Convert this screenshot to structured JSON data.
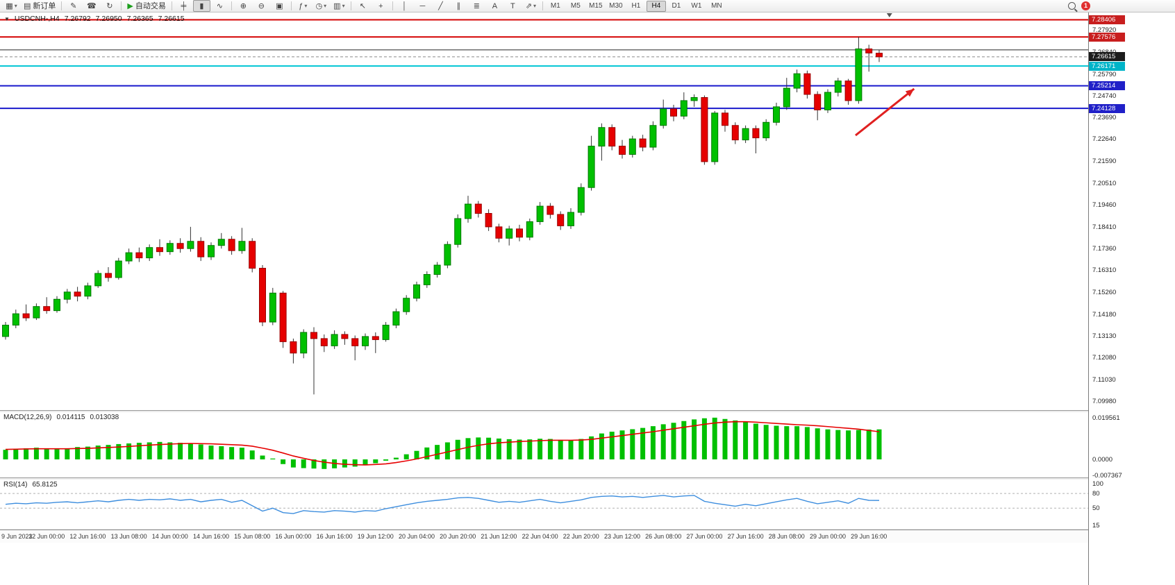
{
  "toolbar": {
    "caret_glyph": "▾",
    "items": [
      {
        "name": "new-chart-button",
        "glyph": "▦",
        "caret": true
      },
      {
        "name": "new-order-button",
        "glyph": "▤",
        "label": "新订单"
      },
      {
        "sep": true
      },
      {
        "name": "quill-icon",
        "glyph": "✎"
      },
      {
        "name": "community-icon",
        "glyph": "☎"
      },
      {
        "name": "refresh-icon",
        "glyph": "↻"
      },
      {
        "sep": true
      },
      {
        "name": "autotrading-button",
        "glyph": "▶",
        "label": "自动交易",
        "glyph_color": "#1d9f1d"
      },
      {
        "sep": true
      },
      {
        "name": "bar-chart-button",
        "glyph": "╪"
      },
      {
        "name": "candlestick-button",
        "glyph": "▮",
        "active": true
      },
      {
        "name": "line-chart-button",
        "glyph": "∿"
      },
      {
        "sep": true
      },
      {
        "name": "zoom-in-button",
        "glyph": "⊕"
      },
      {
        "name": "zoom-out-button",
        "glyph": "⊖"
      },
      {
        "name": "tile-windows-button",
        "glyph": "▣"
      },
      {
        "sep": true
      },
      {
        "name": "indicators-button",
        "glyph": "ƒ",
        "caret": true
      },
      {
        "name": "periods-button",
        "glyph": "◷",
        "caret": true
      },
      {
        "name": "templates-button",
        "glyph": "▥",
        "caret": true
      },
      {
        "sep": true
      },
      {
        "name": "cursor-button",
        "glyph": "↖"
      },
      {
        "name": "crosshair-button",
        "glyph": "+"
      },
      {
        "sep": true
      },
      {
        "name": "vertical-line-button",
        "glyph": "│"
      },
      {
        "name": "horizontal-line-button",
        "glyph": "─"
      },
      {
        "name": "trendline-button",
        "glyph": "╱"
      },
      {
        "name": "channel-button",
        "glyph": "∥"
      },
      {
        "name": "fibonacci-button",
        "glyph": "≣"
      },
      {
        "name": "text-button",
        "glyph": "A"
      },
      {
        "name": "label-button",
        "glyph": "T"
      },
      {
        "name": "arrows-button",
        "glyph": "⇗",
        "caret": true
      },
      {
        "sep": true
      }
    ],
    "timeframes": [
      "M1",
      "M5",
      "M15",
      "M30",
      "H1",
      "H4",
      "D1",
      "W1",
      "MN"
    ],
    "active_timeframe": "H4",
    "notification_count": "1"
  },
  "header": {
    "dropdown_glyph": "▼",
    "symbol_period": "USDCNH-,H4",
    "open": "7.26792",
    "high": "7.26950",
    "low": "7.26365",
    "close": "7.26615"
  },
  "indicator_labels": {
    "macd": {
      "name": "MACD(12,26,9)",
      "main": "0.014115",
      "signal": "0.013038"
    },
    "rsi": {
      "name": "RSI(14)",
      "value": "65.8125"
    }
  },
  "colors": {
    "candle_up": "#00c000",
    "candle_up_border": "#007800",
    "candle_down": "#e60000",
    "candle_down_border": "#990000",
    "wick": "#333333",
    "macd_bar": "#00c000",
    "macd_signal": "#e60000",
    "rsi_line": "#3c8dde",
    "arrow": "#e02020",
    "bid_line": "#888888"
  },
  "chart_data": {
    "type": "candlestick",
    "symbol": "USDCNH-",
    "period": "H4",
    "price_panel": {
      "ylim": [
        7.09543,
        7.28758
      ],
      "axis_ticks": [
        7.2792,
        7.2684,
        7.2579,
        7.2474,
        7.2369,
        7.2264,
        7.2159,
        7.2051,
        7.1946,
        7.1841,
        7.1736,
        7.1631,
        7.1526,
        7.1418,
        7.1313,
        7.1208,
        7.1103,
        7.0998
      ],
      "axis_boxes": [
        {
          "text": "7.28406",
          "value": 7.28406,
          "color": "#c81e1e"
        },
        {
          "text": "7.27576",
          "value": 7.27576,
          "color": "#c81e1e"
        },
        {
          "text": "7.26615",
          "value": 7.26615,
          "color": "#1c1c1c"
        },
        {
          "text": "7.26171",
          "value": 7.26171,
          "color": "#00b4c8"
        },
        {
          "text": "7.25214",
          "value": 7.25214,
          "color": "#2020c8"
        },
        {
          "text": "7.24128",
          "value": 7.24128,
          "color": "#2020c8"
        }
      ],
      "hlines": [
        {
          "price": 7.28406,
          "color": "#d40000",
          "width": 2,
          "name": "resistance-line-upper"
        },
        {
          "price": 7.27576,
          "color": "#d40000",
          "width": 2,
          "name": "resistance-line"
        },
        {
          "price": 7.2695,
          "color": "#222222",
          "width": 1,
          "name": "black-level-line"
        },
        {
          "price": 7.26171,
          "color": "#00c5d4",
          "width": 2,
          "name": "cyan-level-line"
        },
        {
          "price": 7.25214,
          "color": "#1818cc",
          "width": 2,
          "name": "support-line-1"
        },
        {
          "price": 7.24128,
          "color": "#1818cc",
          "width": 2,
          "name": "support-line-2"
        }
      ],
      "bid": 7.26615,
      "annotation_arrow": {
        "from": {
          "bar": 82.7,
          "price": 7.2282
        },
        "to": {
          "bar": 88.4,
          "price": 7.2507
        }
      },
      "shift_marker_bar": 86,
      "candles": [
        [
          7.131,
          7.138,
          7.1295,
          7.1365
        ],
        [
          7.1365,
          7.144,
          7.135,
          7.142
        ],
        [
          7.142,
          7.1465,
          7.1385,
          7.14
        ],
        [
          7.14,
          7.147,
          7.139,
          7.1455
        ],
        [
          7.1455,
          7.15,
          7.142,
          7.1435
        ],
        [
          7.1435,
          7.1505,
          7.1425,
          7.149
        ],
        [
          7.149,
          7.154,
          7.147,
          7.1525
        ],
        [
          7.1525,
          7.155,
          7.148,
          7.1505
        ],
        [
          7.1505,
          7.157,
          7.149,
          7.1555
        ],
        [
          7.1555,
          7.163,
          7.1545,
          7.1615
        ],
        [
          7.1615,
          7.1645,
          7.1575,
          7.1595
        ],
        [
          7.1595,
          7.169,
          7.1585,
          7.1675
        ],
        [
          7.1675,
          7.1735,
          7.166,
          7.1715
        ],
        [
          7.1715,
          7.174,
          7.167,
          7.169
        ],
        [
          7.169,
          7.1755,
          7.1675,
          7.174
        ],
        [
          7.174,
          7.178,
          7.17,
          7.172
        ],
        [
          7.172,
          7.1775,
          7.1705,
          7.176
        ],
        [
          7.176,
          7.1785,
          7.1715,
          7.1735
        ],
        [
          7.1735,
          7.184,
          7.172,
          7.177
        ],
        [
          7.177,
          7.179,
          7.1675,
          7.1695
        ],
        [
          7.1695,
          7.1765,
          7.168,
          7.175
        ],
        [
          7.175,
          7.181,
          7.1735,
          7.178
        ],
        [
          7.178,
          7.1795,
          7.1705,
          7.1725
        ],
        [
          7.1725,
          7.1835,
          7.171,
          7.177
        ],
        [
          7.177,
          7.1785,
          7.162,
          7.164
        ],
        [
          7.164,
          7.1655,
          7.136,
          7.138
        ],
        [
          7.138,
          7.1545,
          7.1365,
          7.152
        ],
        [
          7.152,
          7.153,
          7.1255,
          7.1285
        ],
        [
          7.1285,
          7.13,
          7.118,
          7.123
        ],
        [
          7.123,
          7.1345,
          7.1205,
          7.133
        ],
        [
          7.133,
          7.1355,
          7.103,
          7.13
        ],
        [
          7.13,
          7.132,
          7.1235,
          7.1265
        ],
        [
          7.1265,
          7.134,
          7.125,
          7.132
        ],
        [
          7.132,
          7.1335,
          7.127,
          7.13
        ],
        [
          7.13,
          7.1315,
          7.1195,
          7.1265
        ],
        [
          7.1265,
          7.1325,
          7.1245,
          7.131
        ],
        [
          7.131,
          7.133,
          7.123,
          7.1295
        ],
        [
          7.1295,
          7.138,
          7.1285,
          7.1365
        ],
        [
          7.1365,
          7.1445,
          7.135,
          7.143
        ],
        [
          7.143,
          7.151,
          7.1415,
          7.1495
        ],
        [
          7.1495,
          7.1575,
          7.148,
          7.156
        ],
        [
          7.156,
          7.1625,
          7.1545,
          7.161
        ],
        [
          7.161,
          7.167,
          7.1595,
          7.1655
        ],
        [
          7.1655,
          7.177,
          7.164,
          7.1755
        ],
        [
          7.1755,
          7.19,
          7.174,
          7.188
        ],
        [
          7.188,
          7.199,
          7.186,
          7.195
        ],
        [
          7.195,
          7.1965,
          7.1885,
          7.1905
        ],
        [
          7.1905,
          7.1925,
          7.182,
          7.184
        ],
        [
          7.184,
          7.1855,
          7.1765,
          7.1785
        ],
        [
          7.1785,
          7.1845,
          7.175,
          7.183
        ],
        [
          7.183,
          7.185,
          7.177,
          7.179
        ],
        [
          7.179,
          7.188,
          7.1775,
          7.1865
        ],
        [
          7.1865,
          7.196,
          7.185,
          7.194
        ],
        [
          7.194,
          7.1955,
          7.188,
          7.19
        ],
        [
          7.19,
          7.1915,
          7.1825,
          7.1845
        ],
        [
          7.1845,
          7.193,
          7.183,
          7.191
        ],
        [
          7.191,
          7.205,
          7.1895,
          7.203
        ],
        [
          7.203,
          7.228,
          7.2015,
          7.223
        ],
        [
          7.223,
          7.234,
          7.216,
          7.232
        ],
        [
          7.232,
          7.2335,
          7.221,
          7.223
        ],
        [
          7.223,
          7.226,
          7.217,
          7.219
        ],
        [
          7.219,
          7.228,
          7.2175,
          7.2265
        ],
        [
          7.2265,
          7.2285,
          7.2205,
          7.2225
        ],
        [
          7.2225,
          7.235,
          7.221,
          7.233
        ],
        [
          7.233,
          7.2455,
          7.2315,
          7.241
        ],
        [
          7.241,
          7.243,
          7.235,
          7.2375
        ],
        [
          7.2375,
          7.249,
          7.236,
          7.245
        ],
        [
          7.245,
          7.248,
          7.242,
          7.2465
        ],
        [
          7.2465,
          7.2475,
          7.214,
          7.2155
        ],
        [
          7.2155,
          7.24,
          7.214,
          7.239
        ],
        [
          7.239,
          7.2405,
          7.23,
          7.233
        ],
        [
          7.233,
          7.2345,
          7.224,
          7.226
        ],
        [
          7.226,
          7.233,
          7.2245,
          7.2315
        ],
        [
          7.2315,
          7.233,
          7.2195,
          7.227
        ],
        [
          7.227,
          7.236,
          7.2255,
          7.2345
        ],
        [
          7.2345,
          7.244,
          7.233,
          7.242
        ],
        [
          7.242,
          7.256,
          7.2405,
          7.251
        ],
        [
          7.251,
          7.26,
          7.249,
          7.258
        ],
        [
          7.258,
          7.2595,
          7.246,
          7.248
        ],
        [
          7.248,
          7.2495,
          7.2355,
          7.2405
        ],
        [
          7.2405,
          7.2505,
          7.239,
          7.249
        ],
        [
          7.249,
          7.256,
          7.247,
          7.2545
        ],
        [
          7.2545,
          7.2555,
          7.243,
          7.245
        ],
        [
          7.245,
          7.2758,
          7.2435,
          7.27
        ],
        [
          7.27,
          7.272,
          7.259,
          7.268
        ],
        [
          7.26792,
          7.2695,
          7.26365,
          7.26615
        ]
      ]
    },
    "macd_panel": {
      "name": "MACD(12,26,9)",
      "vlim": [
        -0.00848,
        0.02217
      ],
      "axis_labels": [
        {
          "text": "0.019561",
          "value": 0.019561
        },
        {
          "text": "0.0000",
          "value": 0
        },
        {
          "text": "-0.007367",
          "value": -0.007367
        }
      ],
      "histogram": [
        0.0045,
        0.005,
        0.0052,
        0.0055,
        0.005,
        0.0048,
        0.0052,
        0.0058,
        0.006,
        0.0065,
        0.0068,
        0.0072,
        0.0075,
        0.0078,
        0.008,
        0.0082,
        0.008,
        0.0078,
        0.0075,
        0.007,
        0.0065,
        0.0062,
        0.0058,
        0.0055,
        0.0042,
        0.0018,
        0.0004,
        -0.0022,
        -0.0038,
        -0.0041,
        -0.0043,
        -0.0045,
        -0.0042,
        -0.0038,
        -0.0034,
        -0.0028,
        -0.0018,
        -0.0006,
        0.0008,
        0.0024,
        0.004,
        0.0056,
        0.0068,
        0.008,
        0.0092,
        0.01,
        0.0103,
        0.0102,
        0.0098,
        0.0095,
        0.0093,
        0.0094,
        0.0097,
        0.0096,
        0.0092,
        0.0091,
        0.0096,
        0.0108,
        0.0122,
        0.013,
        0.0136,
        0.0142,
        0.0148,
        0.0156,
        0.0165,
        0.0172,
        0.018,
        0.0188,
        0.0193,
        0.0196,
        0.019,
        0.0183,
        0.0175,
        0.0168,
        0.0162,
        0.0158,
        0.0156,
        0.0156,
        0.0152,
        0.0146,
        0.0141,
        0.0138,
        0.0136,
        0.0138,
        0.014,
        0.0141
      ],
      "signal": [
        0.0047,
        0.0048,
        0.0049,
        0.005,
        0.005,
        0.005,
        0.005,
        0.0051,
        0.0052,
        0.0054,
        0.0056,
        0.0058,
        0.0061,
        0.0064,
        0.0067,
        0.007,
        0.0072,
        0.0074,
        0.0075,
        0.0074,
        0.0073,
        0.0071,
        0.0069,
        0.0067,
        0.0062,
        0.0053,
        0.0043,
        0.003,
        0.0016,
        0.0005,
        -0.0005,
        -0.0013,
        -0.0019,
        -0.0023,
        -0.0025,
        -0.0026,
        -0.0024,
        -0.0021,
        -0.0015,
        -0.0007,
        0.0002,
        0.0013,
        0.0024,
        0.0035,
        0.0046,
        0.0057,
        0.0066,
        0.0073,
        0.0078,
        0.0081,
        0.0084,
        0.0086,
        0.0088,
        0.009,
        0.009,
        0.009,
        0.0091,
        0.0094,
        0.01,
        0.0106,
        0.0112,
        0.0118,
        0.0124,
        0.013,
        0.0137,
        0.0144,
        0.0151,
        0.0158,
        0.0165,
        0.0171,
        0.0175,
        0.0177,
        0.0177,
        0.0175,
        0.0172,
        0.0169,
        0.0166,
        0.0163,
        0.0161,
        0.0158,
        0.0154,
        0.015,
        0.0146,
        0.0142,
        0.0136,
        0.013
      ]
    },
    "rsi_panel": {
      "name": "RSI(14)",
      "vlim": [
        6.5,
        108.5
      ],
      "levels": [
        80,
        50
      ],
      "axis_labels": [
        {
          "text": "100",
          "value": 100
        },
        {
          "text": "80",
          "value": 80
        },
        {
          "text": "50",
          "value": 50
        },
        {
          "text": "15",
          "value": 15
        }
      ],
      "values": [
        58,
        60,
        59,
        61,
        60,
        62,
        63,
        61,
        63,
        65,
        63,
        66,
        68,
        66,
        68,
        67,
        69,
        66,
        68,
        63,
        66,
        68,
        62,
        66,
        55,
        44,
        50,
        41,
        39,
        45,
        43,
        42,
        45,
        44,
        42,
        45,
        44,
        49,
        53,
        57,
        61,
        64,
        66,
        68,
        71,
        72,
        70,
        66,
        62,
        64,
        62,
        65,
        68,
        64,
        61,
        64,
        67,
        72,
        74,
        75,
        73,
        74,
        72,
        74,
        76,
        73,
        75,
        76,
        64,
        60,
        57,
        54,
        58,
        55,
        59,
        63,
        67,
        70,
        64,
        59,
        62,
        65,
        60,
        70,
        66,
        65.81
      ]
    },
    "time_axis": {
      "bars_per_label": 4,
      "labels": [
        "9 Jun 2023",
        "12 Jun 00:00",
        "12 Jun 16:00",
        "13 Jun 08:00",
        "14 Jun 00:00",
        "14 Jun 16:00",
        "15 Jun 08:00",
        "16 Jun 00:00",
        "16 Jun 16:00",
        "19 Jun 12:00",
        "20 Jun 04:00",
        "20 Jun 20:00",
        "21 Jun 12:00",
        "22 Jun 04:00",
        "22 Jun 20:00",
        "23 Jun 12:00",
        "26 Jun 08:00",
        "27 Jun 00:00",
        "27 Jun 16:00",
        "28 Jun 08:00",
        "29 Jun 00:00",
        "29 Jun 16:00"
      ]
    }
  }
}
